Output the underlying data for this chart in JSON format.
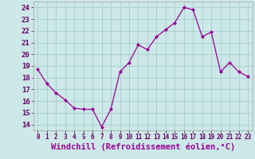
{
  "x": [
    0,
    1,
    2,
    3,
    4,
    5,
    6,
    7,
    8,
    9,
    10,
    11,
    12,
    13,
    14,
    15,
    16,
    17,
    18,
    19,
    20,
    21,
    22,
    23
  ],
  "y": [
    18.7,
    17.5,
    16.7,
    16.1,
    15.4,
    15.3,
    15.3,
    13.8,
    15.3,
    18.5,
    19.3,
    20.8,
    20.4,
    21.5,
    22.1,
    22.7,
    24.0,
    23.8,
    21.5,
    21.9,
    18.5,
    19.3,
    18.5,
    18.1
  ],
  "line_color": "#990099",
  "marker": "D",
  "marker_size": 2,
  "bg_color": "#cce8e8",
  "grid_color": "#aacccc",
  "xlabel": "Windchill (Refroidissement éolien,°C)",
  "xlabel_color": "#990099",
  "ylabel_ticks": [
    14,
    15,
    16,
    17,
    18,
    19,
    20,
    21,
    22,
    23,
    24
  ],
  "xtick_labels": [
    "0",
    "1",
    "2",
    "3",
    "4",
    "5",
    "6",
    "7",
    "8",
    "9",
    "10",
    "11",
    "12",
    "13",
    "14",
    "15",
    "16",
    "17",
    "18",
    "19",
    "20",
    "21",
    "22",
    "23"
  ],
  "ylim": [
    13.5,
    24.5
  ],
  "xlim": [
    -0.5,
    23.5
  ],
  "ytick_fontsize": 6.5,
  "xtick_fontsize": 5.5,
  "xlabel_fontsize": 7.5
}
